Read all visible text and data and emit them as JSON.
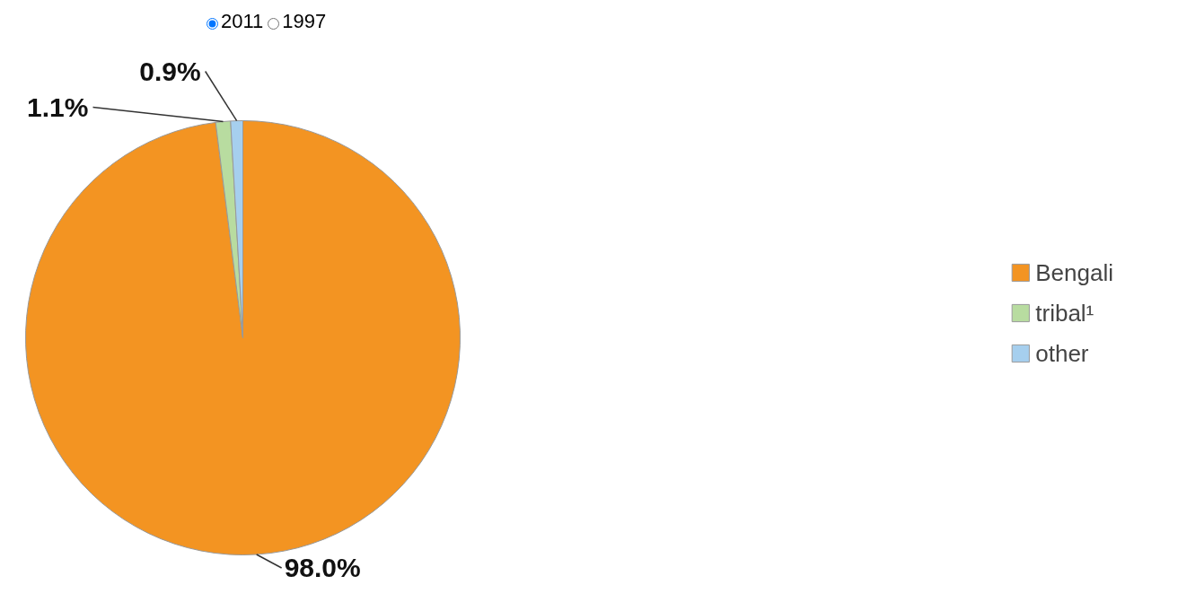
{
  "chart_data": {
    "type": "pie",
    "annotations": [
      "2011",
      "1997"
    ],
    "categories": [
      "Bengali",
      "tribal¹",
      "other"
    ],
    "values": [
      98.0,
      1.1,
      0.9
    ],
    "colors": [
      "#f39422",
      "#b8dca0",
      "#a6cfee"
    ],
    "data_labels": true,
    "value_labels": [
      "98.0%",
      "1.1%",
      "0.9%"
    ],
    "legend": "right"
  }
}
